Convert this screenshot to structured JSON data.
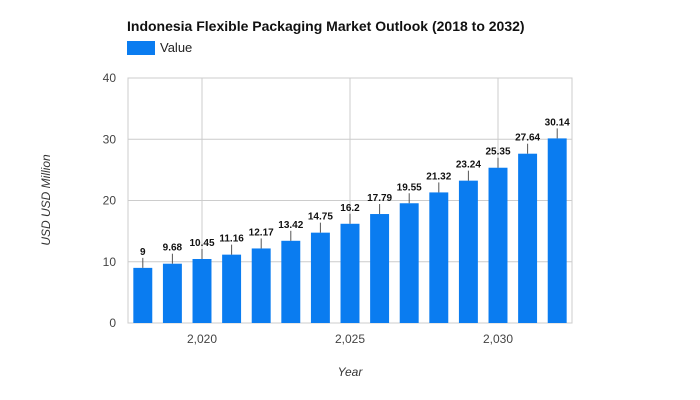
{
  "chart_data": {
    "type": "bar",
    "title": "Indonesia Flexible Packaging Market Outlook (2018 to 2032)",
    "xlabel": "Year",
    "ylabel": "USD USD Million",
    "x": [
      2018,
      2019,
      2020,
      2021,
      2022,
      2023,
      2024,
      2025,
      2026,
      2027,
      2028,
      2029,
      2030,
      2031,
      2032
    ],
    "series": [
      {
        "name": "Value",
        "color": "#0a7cf0",
        "values": [
          9,
          9.68,
          10.45,
          11.16,
          12.17,
          13.42,
          14.75,
          16.2,
          17.79,
          19.55,
          21.32,
          23.24,
          25.35,
          27.64,
          30.14
        ],
        "labels": [
          "9",
          "9.68",
          "10.45",
          "11.16",
          "12.17",
          "13.42",
          "14.75",
          "16.2",
          "17.79",
          "19.55",
          "21.32",
          "23.24",
          "25.35",
          "27.64",
          "30.14"
        ]
      }
    ],
    "ylim": [
      0,
      40
    ],
    "y_ticks": [
      0,
      10,
      20,
      30,
      40
    ],
    "y_tick_labels": [
      "0",
      "10",
      "20",
      "30",
      "40"
    ],
    "x_ticks": [
      2020,
      2025,
      2030
    ],
    "x_tick_labels": [
      "2,020",
      "2,025",
      "2,030"
    ],
    "grid": true,
    "legend": "top-left"
  }
}
